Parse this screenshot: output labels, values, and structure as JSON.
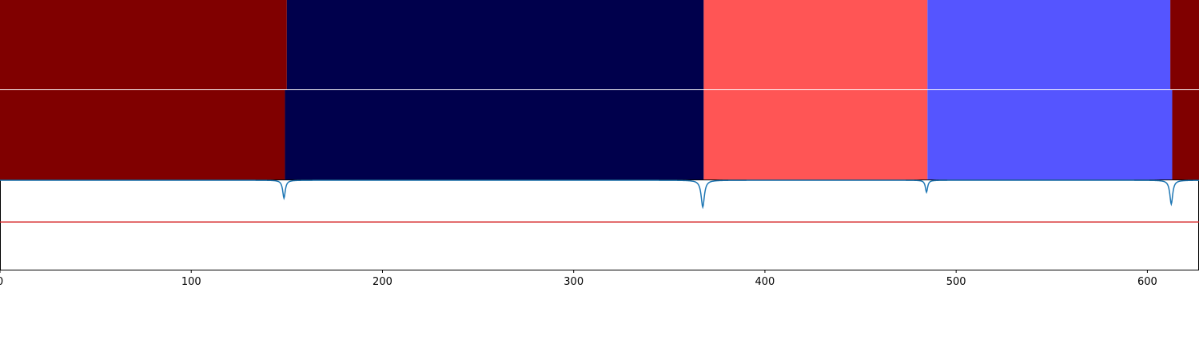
{
  "chart_data": {
    "type": "heatmap",
    "title": "",
    "xlabel": "",
    "ylabel": "",
    "xlim": [
      0,
      627
    ],
    "x_ticks": [
      0,
      100,
      200,
      300,
      400,
      500,
      600
    ],
    "x_tick_labels": [
      "0",
      "100",
      "200",
      "300",
      "400",
      "500",
      "600"
    ],
    "grid": false,
    "segment_rows": [
      {
        "segments": [
          {
            "start": 0,
            "end": 150,
            "color": "#800000"
          },
          {
            "start": 150,
            "end": 368,
            "color": "#00004c"
          },
          {
            "start": 368,
            "end": 485,
            "color": "#ff5555"
          },
          {
            "start": 485,
            "end": 612,
            "color": "#5555ff"
          },
          {
            "start": 612,
            "end": 627,
            "color": "#800000"
          }
        ]
      },
      {
        "segments": [
          {
            "start": 0,
            "end": 149,
            "color": "#800000"
          },
          {
            "start": 149,
            "end": 368,
            "color": "#00004c"
          },
          {
            "start": 368,
            "end": 485,
            "color": "#ff5555"
          },
          {
            "start": 485,
            "end": 613,
            "color": "#5555ff"
          },
          {
            "start": 613,
            "end": 627,
            "color": "#800000"
          }
        ]
      }
    ],
    "signal": {
      "color": "#1f77b4",
      "baseline": 1.0,
      "ylim": [
        -0.5,
        1.0
      ],
      "dips": [
        {
          "x": 148.5,
          "depth": 0.3,
          "width": 0.8
        },
        {
          "x": 367.5,
          "depth": 0.45,
          "width": 1.0
        },
        {
          "x": 484.5,
          "depth": 0.2,
          "width": 0.7
        },
        {
          "x": 612.5,
          "depth": 0.4,
          "width": 0.9
        }
      ]
    },
    "threshold": {
      "value": 0.3,
      "color": "#d62728"
    }
  }
}
